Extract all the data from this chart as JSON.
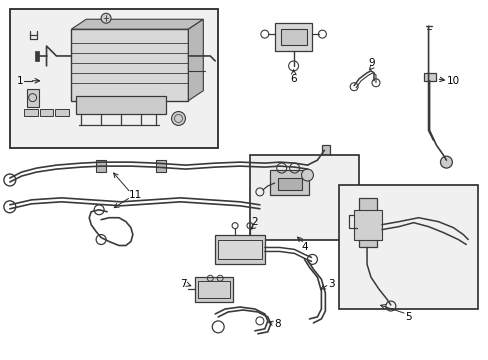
{
  "bg_color": "#ffffff",
  "line_color": "#3a3a3a",
  "box_color": "#2a2a2a",
  "fill_light": "#e8e8e8",
  "fill_mid": "#d0d0d0",
  "label_color": "#000000",
  "fig_width": 4.89,
  "fig_height": 3.6,
  "dpi": 100
}
